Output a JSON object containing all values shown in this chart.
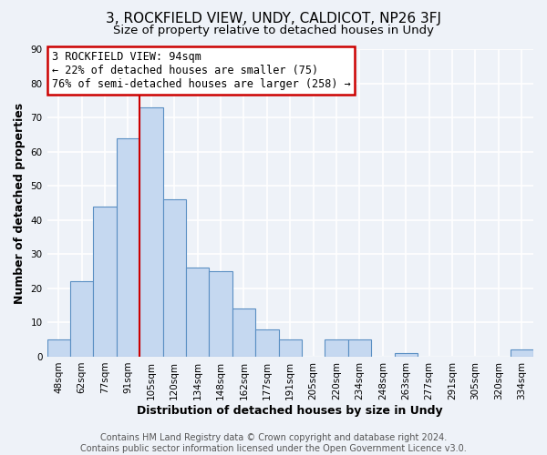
{
  "title": "3, ROCKFIELD VIEW, UNDY, CALDICOT, NP26 3FJ",
  "subtitle": "Size of property relative to detached houses in Undy",
  "xlabel": "Distribution of detached houses by size in Undy",
  "ylabel": "Number of detached properties",
  "bin_labels": [
    "48sqm",
    "62sqm",
    "77sqm",
    "91sqm",
    "105sqm",
    "120sqm",
    "134sqm",
    "148sqm",
    "162sqm",
    "177sqm",
    "191sqm",
    "205sqm",
    "220sqm",
    "234sqm",
    "248sqm",
    "263sqm",
    "277sqm",
    "291sqm",
    "305sqm",
    "320sqm",
    "334sqm"
  ],
  "bar_heights": [
    5,
    22,
    44,
    64,
    73,
    46,
    26,
    25,
    14,
    8,
    5,
    0,
    5,
    5,
    0,
    1,
    0,
    0,
    0,
    0,
    2
  ],
  "bar_color": "#c5d8f0",
  "bar_edge_color": "#5a8fc3",
  "vline_x_idx": 3,
  "vline_color": "#cc0000",
  "annotation_line1": "3 ROCKFIELD VIEW: 94sqm",
  "annotation_line2": "← 22% of detached houses are smaller (75)",
  "annotation_line3": "76% of semi-detached houses are larger (258) →",
  "annotation_box_color": "white",
  "annotation_box_edge": "#cc0000",
  "ylim": [
    0,
    90
  ],
  "yticks": [
    0,
    10,
    20,
    30,
    40,
    50,
    60,
    70,
    80,
    90
  ],
  "footer": "Contains HM Land Registry data © Crown copyright and database right 2024.\nContains public sector information licensed under the Open Government Licence v3.0.",
  "bg_color": "#eef2f8",
  "grid_color": "#ffffff",
  "title_fontsize": 11,
  "subtitle_fontsize": 9.5,
  "axis_label_fontsize": 9,
  "tick_fontsize": 7.5,
  "footer_fontsize": 7,
  "annotation_fontsize": 8.5
}
